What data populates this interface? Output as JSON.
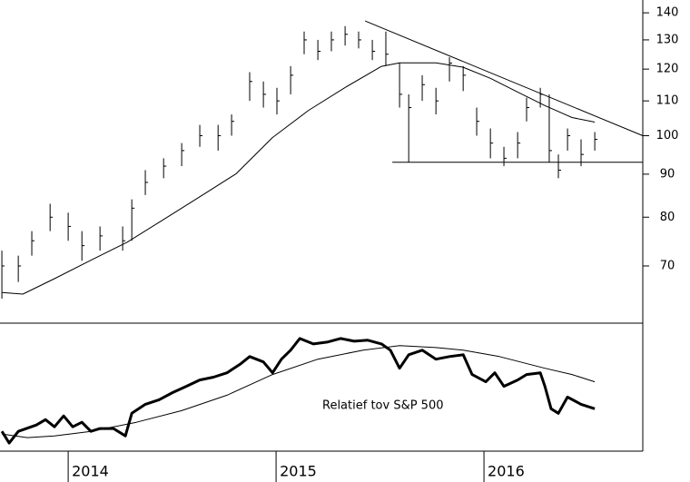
{
  "chart_data": [
    {
      "type": "ohlc",
      "log_y": true,
      "color": "#000000",
      "xlim": [
        2013.672,
        2016.764
      ],
      "ylim": [
        60,
        145
      ],
      "yticks": [
        70,
        80,
        90,
        100,
        110,
        120,
        130,
        140
      ],
      "x": [
        2013.681,
        2013.76,
        2013.825,
        2013.913,
        2014.0,
        2014.066,
        2014.153,
        2014.262,
        2014.306,
        2014.371,
        2014.459,
        2014.546,
        2014.633,
        2014.721,
        2014.786,
        2014.873,
        2014.939,
        2015.004,
        2015.07,
        2015.135,
        2015.201,
        2015.266,
        2015.332,
        2015.397,
        2015.463,
        2015.528,
        2015.594,
        2015.638,
        2015.703,
        2015.769,
        2015.834,
        2015.9,
        2015.965,
        2016.031,
        2016.096,
        2016.162,
        2016.205,
        2016.271,
        2016.314,
        2016.358,
        2016.402,
        2016.467,
        2016.533
      ],
      "high": [
        73,
        72,
        77,
        83,
        81,
        77,
        78,
        78,
        84,
        91,
        94,
        98,
        103,
        103,
        106,
        119,
        116,
        114,
        121,
        133,
        130,
        133,
        135,
        133,
        130,
        133,
        122,
        112,
        118,
        114,
        124,
        121,
        108,
        102,
        97,
        101,
        111,
        114,
        112,
        95,
        102,
        99,
        101
      ],
      "low": [
        64,
        67,
        72,
        77,
        75,
        71,
        73,
        73,
        75,
        85,
        89,
        92,
        97,
        96,
        100,
        110,
        108,
        106,
        112,
        125,
        123,
        126,
        128,
        127,
        123,
        121,
        108,
        93,
        110,
        106,
        116,
        113,
        100,
        94,
        92,
        94,
        104,
        108,
        93,
        89,
        96,
        92,
        96
      ],
      "close": [
        70,
        70,
        75,
        80,
        78,
        74,
        76,
        75,
        82,
        88,
        92,
        96,
        100,
        100,
        104,
        116,
        112,
        110,
        118,
        130,
        126,
        130,
        132,
        130,
        126,
        125,
        112,
        108,
        115,
        110,
        122,
        118,
        104,
        98,
        94,
        98,
        108,
        112,
        96,
        91,
        100,
        95,
        99
      ],
      "lines": [
        {
          "color": "#000000",
          "x": [
            2013.681,
            2013.782,
            2013.934,
            2014.109,
            2014.284,
            2014.459,
            2014.633,
            2014.808,
            2014.983,
            2015.157,
            2015.332,
            2015.507,
            2015.594,
            2015.769,
            2015.9,
            2016.031,
            2016.162,
            2016.293,
            2016.424,
            2016.533
          ],
          "values": [
            65.1,
            64.8,
            67.6,
            71.1,
            74.7,
            79.5,
            84.6,
            90.1,
            99.5,
            107.2,
            114.1,
            120.9,
            122.1,
            122.1,
            120.6,
            117.0,
            112.7,
            108.6,
            105.1,
            103.8
          ]
        },
        {
          "color": "#000000",
          "x": [
            2015.428,
            2016.764
          ],
          "values": [
            136.9,
            100
          ]
        },
        {
          "color": "#000000",
          "x": [
            2015.559,
            2016.764
          ],
          "values": [
            93,
            93
          ]
        }
      ]
    },
    {
      "type": "line",
      "xlim": [
        2013.672,
        2016.764
      ],
      "ylim": [
        0,
        100
      ],
      "xticks": [
        2014,
        2015,
        2016
      ],
      "annotation": "Relatief tov S&P 500",
      "series": [
        {
          "color": "#000000",
          "width": 3,
          "x": [
            2013.681,
            2013.716,
            2013.76,
            2013.847,
            2013.891,
            2013.934,
            2013.978,
            2014.022,
            2014.066,
            2014.109,
            2014.153,
            2014.218,
            2014.275,
            2014.306,
            2014.371,
            2014.437,
            2014.502,
            2014.568,
            2014.633,
            2014.699,
            2014.764,
            2014.83,
            2014.873,
            2014.939,
            2014.983,
            2015.026,
            2015.07,
            2015.114,
            2015.179,
            2015.245,
            2015.31,
            2015.376,
            2015.441,
            2015.507,
            2015.55,
            2015.594,
            2015.638,
            2015.703,
            2015.769,
            2015.834,
            2015.9,
            2015.943,
            2016.009,
            2016.052,
            2016.096,
            2016.162,
            2016.205,
            2016.271,
            2016.293,
            2016.323,
            2016.358,
            2016.402,
            2016.467,
            2016.533
          ],
          "values": [
            15.7,
            6.4,
            15.7,
            20.7,
            25,
            19.3,
            27.9,
            19.3,
            22.9,
            15.7,
            17.9,
            17.9,
            12.1,
            30,
            37.1,
            40.7,
            46.4,
            51.4,
            56.4,
            58.6,
            62.1,
            69.3,
            75,
            70.7,
            62.1,
            72.9,
            80,
            89.3,
            85,
            86.4,
            89.3,
            87.1,
            87.9,
            85,
            80,
            65.7,
            76.4,
            80,
            72.9,
            75,
            76.4,
            60.7,
            55,
            62.1,
            51.4,
            56.4,
            60.7,
            62.1,
            51.4,
            33.6,
            30,
            42.9,
            37.1,
            33.6
          ]
        },
        {
          "color": "#000000",
          "width": 1,
          "x": [
            2013.681,
            2013.803,
            2013.934,
            2014.109,
            2014.328,
            2014.546,
            2014.764,
            2014.983,
            2015.201,
            2015.419,
            2015.594,
            2015.769,
            2015.9,
            2016.074,
            2016.293,
            2016.424,
            2016.533
          ],
          "values": [
            13.6,
            10.7,
            12.1,
            15.7,
            22.9,
            32.1,
            44.3,
            60.7,
            72.9,
            80,
            83.6,
            82.1,
            80,
            75,
            65.7,
            60.7,
            55
          ]
        }
      ]
    }
  ]
}
